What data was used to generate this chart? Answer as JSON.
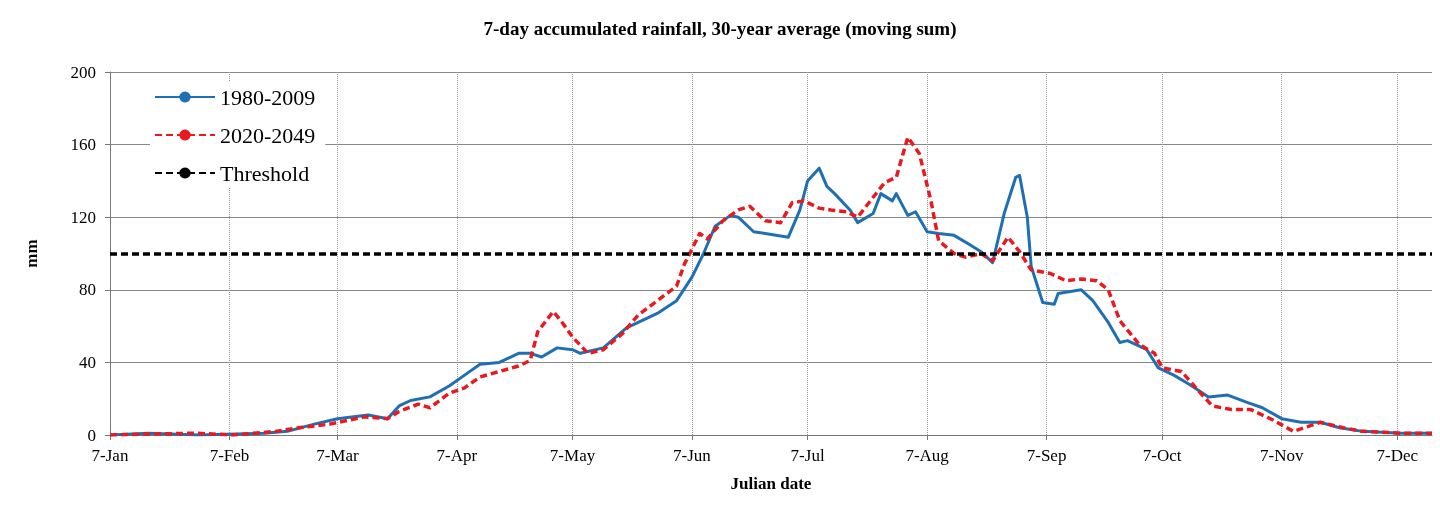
{
  "chart_data": {
    "type": "line",
    "title": "7-day accumulated rainfall, 30-year average (moving sum)",
    "xlabel": "Julian date",
    "ylabel": "mm",
    "xlim": [
      "--01-07",
      "--12-16"
    ],
    "xticks": [
      {
        "value": "--01-07",
        "label": "7-Jan"
      },
      {
        "value": "--02-07",
        "label": "7-Feb"
      },
      {
        "value": "--03-07",
        "label": "7-Mar"
      },
      {
        "value": "--04-07",
        "label": "7-Apr"
      },
      {
        "value": "--05-07",
        "label": "7-May"
      },
      {
        "value": "--06-07",
        "label": "7-Jun"
      },
      {
        "value": "--07-07",
        "label": "7-Jul"
      },
      {
        "value": "--08-07",
        "label": "7-Aug"
      },
      {
        "value": "--09-07",
        "label": "7-Sep"
      },
      {
        "value": "--10-07",
        "label": "7-Oct"
      },
      {
        "value": "--11-07",
        "label": "7-Nov"
      },
      {
        "value": "--12-07",
        "label": "7-Dec"
      }
    ],
    "ylim": [
      0,
      200
    ],
    "yticks": [
      0,
      40,
      80,
      120,
      160,
      200
    ],
    "grid": true,
    "legend": "top left",
    "marker": "none",
    "series": [
      {
        "name": "1980-2009",
        "color": "#1f6fb4",
        "line_style": "solid",
        "x": [
          "--01-07",
          "--01-17",
          "--01-30",
          "--02-16",
          "--02-22",
          "--03-01",
          "--03-07",
          "--03-15",
          "--03-20",
          "--03-23",
          "--03-26",
          "--03-31",
          "--04-05",
          "--04-09",
          "--04-13",
          "--04-18",
          "--04-23",
          "--04-26",
          "--04-29",
          "--05-03",
          "--05-07",
          "--05-09",
          "--05-15",
          "--05-21",
          "--05-29",
          "--06-03",
          "--06-07",
          "--06-10",
          "--06-13",
          "--06-17",
          "--06-19",
          "--06-23",
          "--06-26",
          "--07-02",
          "--07-05",
          "--07-07",
          "--07-10",
          "--07-12",
          "--07-14",
          "--07-18",
          "--07-20",
          "--07-24",
          "--07-26",
          "--07-29",
          "--07-30",
          "--08-02",
          "--08-04",
          "--08-07",
          "--08-10",
          "--08-14",
          "--08-18",
          "--08-21",
          "--08-24",
          "--08-27",
          "--08-30",
          "--08-31",
          "--09-02",
          "--09-03",
          "--09-06",
          "--09-09",
          "--09-10",
          "--09-16",
          "--09-19",
          "--09-23",
          "--09-26",
          "--09-28",
          "--10-03",
          "--10-06",
          "--10-10",
          "--10-14",
          "--10-19",
          "--10-24",
          "--10-29",
          "--11-02",
          "--11-07",
          "--11-12",
          "--11-17",
          "--11-22",
          "--11-28",
          "--12-08",
          "--12-16"
        ],
        "values": [
          0,
          1,
          0,
          1,
          2,
          6,
          9,
          11,
          9,
          16,
          19,
          21,
          27,
          33,
          39,
          40,
          45,
          45,
          43,
          48,
          47,
          45,
          48,
          59,
          67,
          74,
          87,
          100,
          115,
          121,
          120,
          112,
          111,
          109,
          124,
          140,
          147,
          137,
          133,
          124,
          117,
          122,
          133,
          129,
          133,
          121,
          123,
          112,
          111,
          110,
          105,
          101,
          95,
          122,
          142,
          143,
          120,
          93,
          73,
          72,
          78,
          80,
          74,
          62,
          51,
          52,
          47,
          37,
          33,
          28,
          21,
          22,
          18,
          15,
          9,
          7,
          7,
          4,
          2,
          1,
          1
        ]
      },
      {
        "name": "2020-2049",
        "color": "#e8191f",
        "line_style": "dashed",
        "x": [
          "--01-07",
          "--01-17",
          "--01-29",
          "--02-08",
          "--02-19",
          "--02-25",
          "--03-05",
          "--03-14",
          "--03-20",
          "--03-23",
          "--03-28",
          "--03-31",
          "--04-05",
          "--04-09",
          "--04-13",
          "--04-18",
          "--04-23",
          "--04-26",
          "--04-28",
          "--05-02",
          "--05-04",
          "--05-07",
          "--05-11",
          "--05-15",
          "--05-20",
          "--05-24",
          "--05-29",
          "--06-03",
          "--06-05",
          "--06-09",
          "--06-11",
          "--06-15",
          "--06-19",
          "--06-22",
          "--06-26",
          "--06-30",
          "--07-03",
          "--07-06",
          "--07-10",
          "--07-13",
          "--07-17",
          "--07-20",
          "--07-24",
          "--07-27",
          "--07-30",
          "--08-02",
          "--08-05",
          "--08-08",
          "--08-10",
          "--08-14",
          "--08-17",
          "--08-21",
          "--08-24",
          "--08-28",
          "--08-31",
          "--09-03",
          "--09-08",
          "--09-12",
          "--09-16",
          "--09-20",
          "--09-23",
          "--09-26",
          "--10-01",
          "--10-05",
          "--10-07",
          "--10-12",
          "--10-17",
          "--10-20",
          "--10-25",
          "--10-30",
          "--11-05",
          "--11-10",
          "--11-17",
          "--11-23",
          "--11-28",
          "--12-08",
          "--12-16"
        ],
        "values": [
          0,
          0.5,
          1,
          0,
          2,
          4,
          6,
          10,
          9,
          13,
          17,
          15,
          23,
          26,
          32,
          35,
          38,
          41,
          57,
          68,
          63,
          54,
          45,
          47,
          56,
          66,
          74,
          82,
          94,
          111,
          108,
          118,
          124,
          126,
          118,
          117,
          128,
          129,
          125,
          124,
          123,
          120,
          131,
          139,
          142,
          164,
          155,
          129,
          107,
          100,
          98,
          100,
          96,
          109,
          101,
          91,
          89,
          85,
          86,
          85,
          80,
          63,
          50,
          45,
          37,
          35,
          23,
          16,
          14,
          14,
          8,
          2,
          7,
          4,
          2,
          1,
          1
        ]
      }
    ],
    "ref_lines": [
      {
        "axis": "y",
        "value": 100,
        "label": "Threshold",
        "color": "#000000",
        "line_style": "dashed"
      }
    ]
  }
}
